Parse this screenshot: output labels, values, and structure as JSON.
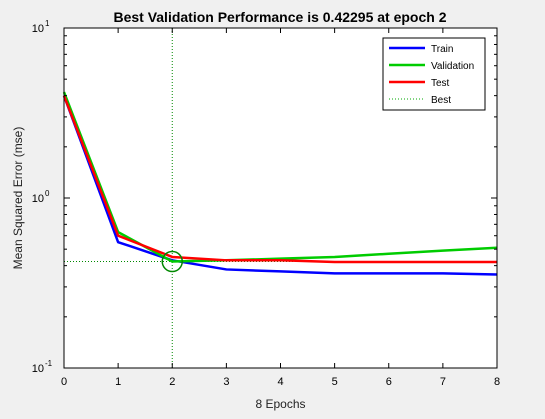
{
  "chart_data": {
    "type": "line",
    "title": "Best Validation Performance is 0.42295 at epoch 2",
    "xlabel": "8 Epochs",
    "ylabel": "Mean Squared Error (mse)",
    "xlim": [
      0,
      8
    ],
    "ylim": [
      0.1,
      10
    ],
    "yscale": "log",
    "grid": false,
    "legend_position": "top-right",
    "xticks": [
      0,
      1,
      2,
      3,
      4,
      5,
      6,
      7,
      8
    ],
    "xtick_labels": [
      "0",
      "1",
      "2",
      "3",
      "4",
      "5",
      "6",
      "7",
      "8"
    ],
    "yticks": [
      0.1,
      1,
      10
    ],
    "ytick_labels": [
      {
        "base": "10",
        "exp": "-1"
      },
      {
        "base": "10",
        "exp": "0"
      },
      {
        "base": "10",
        "exp": "1"
      }
    ],
    "series": [
      {
        "name": "Train",
        "color": "#0000ff",
        "x": [
          0,
          1,
          2,
          3,
          4,
          5,
          6,
          7,
          8
        ],
        "y": [
          4.0,
          0.55,
          0.43,
          0.38,
          0.37,
          0.36,
          0.36,
          0.36,
          0.355
        ]
      },
      {
        "name": "Validation",
        "color": "#00cc00",
        "x": [
          0,
          1,
          2,
          3,
          4,
          5,
          6,
          7,
          8
        ],
        "y": [
          4.2,
          0.63,
          0.42295,
          0.43,
          0.44,
          0.45,
          0.47,
          0.49,
          0.51
        ]
      },
      {
        "name": "Test",
        "color": "#ff0000",
        "x": [
          0,
          1,
          2,
          3,
          4,
          5,
          6,
          7,
          8
        ],
        "y": [
          4.0,
          0.6,
          0.45,
          0.43,
          0.43,
          0.42,
          0.42,
          0.42,
          0.42
        ]
      },
      {
        "name": "Best",
        "color": "#00aa00",
        "style": "dotted",
        "x": [
          2
        ],
        "y": [
          0.42295
        ]
      }
    ],
    "best": {
      "epoch": 2,
      "value": 0.42295,
      "marker_color": "#008800",
      "guide_color": "#008800"
    }
  }
}
